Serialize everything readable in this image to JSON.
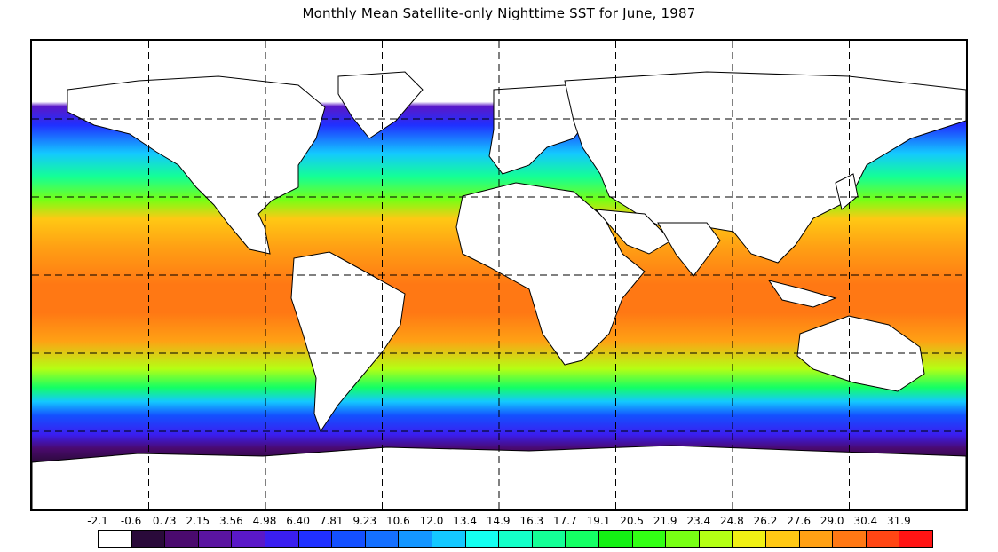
{
  "title": "Monthly Mean Satellite-only Nighttime SST for June, 1987",
  "map": {
    "projection": "equirectangular",
    "lon_range": [
      -180,
      180
    ],
    "lat_range": [
      -90,
      90
    ],
    "gridlines": {
      "style": "dashed",
      "lon_step": 45,
      "lat_step": 30
    },
    "land_color": "#ffffff",
    "coastline_color": "#000000"
  },
  "colorbar": {
    "labels": [
      "-2.1",
      "-0.6",
      "0.73",
      "2.15",
      "3.56",
      "4.98",
      "6.40",
      "7.81",
      "9.23",
      "10.6",
      "12.0",
      "13.4",
      "14.9",
      "16.3",
      "17.7",
      "19.1",
      "20.5",
      "21.9",
      "23.4",
      "24.8",
      "26.2",
      "27.6",
      "29.0",
      "30.4",
      "31.9"
    ],
    "colors": [
      "#ffffff",
      "#2a0a3a",
      "#4a0a6e",
      "#5a14a0",
      "#5a18c8",
      "#3a1ef0",
      "#2030ff",
      "#1450ff",
      "#1470ff",
      "#1496ff",
      "#14c8ff",
      "#14fff0",
      "#14ffc8",
      "#14ff96",
      "#14ff64",
      "#14f014",
      "#32ff14",
      "#78ff14",
      "#b4ff14",
      "#f0f014",
      "#ffc814",
      "#ffa014",
      "#ff7814",
      "#ff4614",
      "#ff1414"
    ]
  }
}
